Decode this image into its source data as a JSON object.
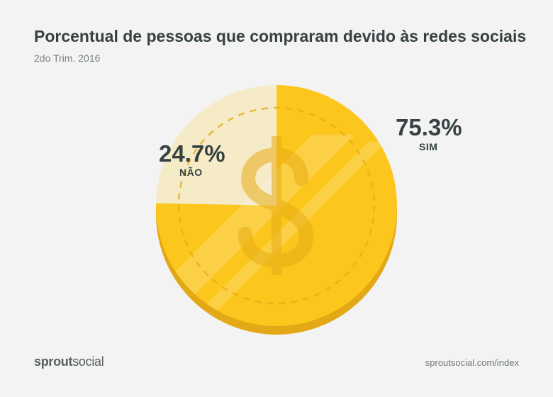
{
  "title": "Porcentual de pessoas que compraram devido às redes sociais",
  "subtitle": "2do Trim. 2016",
  "chart_data": {
    "type": "pie",
    "title": "Porcentual de pessoas que compraram devido às redes sociais",
    "subtitle": "2do Trim. 2016",
    "slices": [
      {
        "label": "SIM",
        "value": 75.3,
        "display": "75.3%",
        "color": "#fcc61d"
      },
      {
        "label": "NÃO",
        "value": 24.7,
        "display": "24.7%",
        "color": "#f5ebc7"
      }
    ],
    "decoration": "coin with dollar sign"
  },
  "footer": {
    "logo_bold": "sprout",
    "logo_regular": "social",
    "url": "sproutsocial.com/index"
  }
}
